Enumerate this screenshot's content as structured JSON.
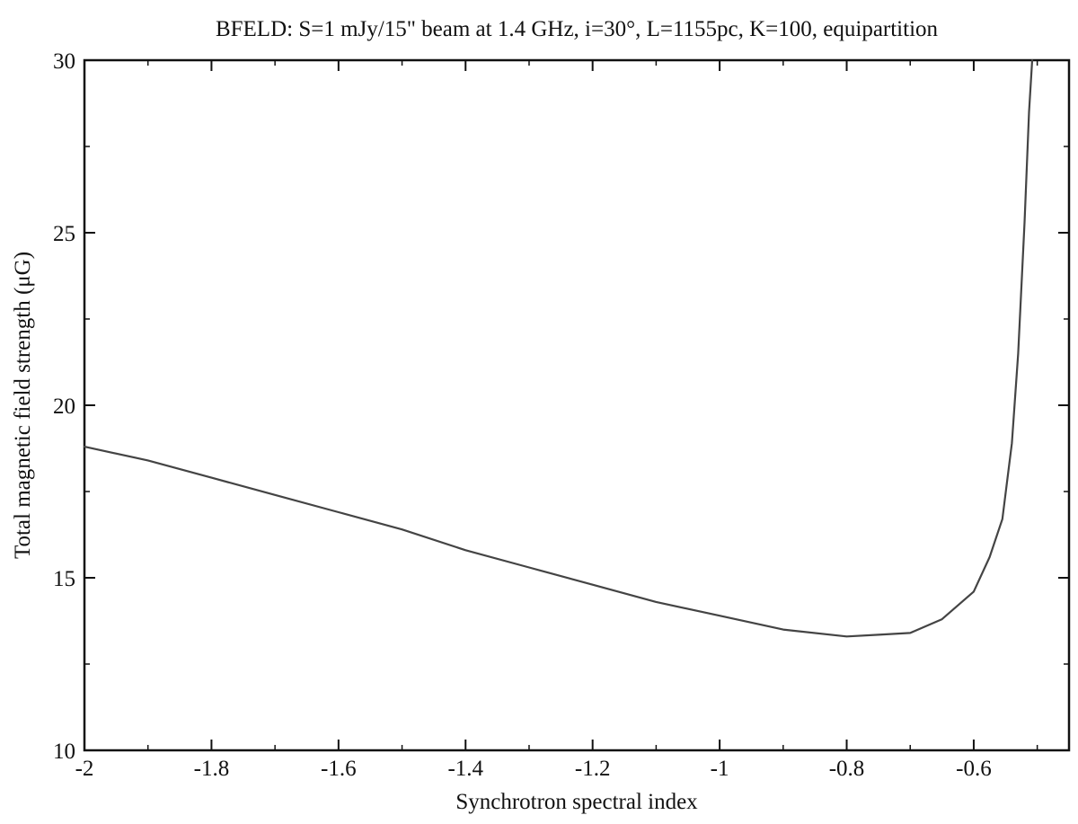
{
  "chart_data": {
    "type": "line",
    "title": "BFELD: S=1 mJy/15\" beam at 1.4 GHz, i=30°, L=1155pc, K=100, equipartition",
    "xlabel": "Synchrotron spectral index",
    "ylabel": "Total magnetic field strength (μG)",
    "xlim": [
      -2,
      -0.45
    ],
    "ylim": [
      10,
      30
    ],
    "x_ticks": [
      -2,
      -1.8,
      -1.6,
      -1.4,
      -1.2,
      -1,
      -0.8,
      -0.6
    ],
    "x_tick_labels": [
      "-2",
      "-1.8",
      "-1.6",
      "-1.4",
      "-1.2",
      "-1",
      "-0.8",
      "-0.6"
    ],
    "y_ticks": [
      10,
      15,
      20,
      25,
      30
    ],
    "y_tick_labels": [
      "10",
      "15",
      "20",
      "25",
      "30"
    ],
    "grid": false,
    "series": [
      {
        "color": "#444444",
        "x": [
          -2.0,
          -1.9,
          -1.8,
          -1.7,
          -1.6,
          -1.5,
          -1.4,
          -1.3,
          -1.2,
          -1.1,
          -1.0,
          -0.9,
          -0.8,
          -0.75,
          -0.7,
          -0.65,
          -0.6,
          -0.575,
          -0.555,
          -0.54,
          -0.53,
          -0.52,
          -0.513,
          -0.508
        ],
        "y": [
          18.8,
          18.4,
          17.9,
          17.4,
          16.9,
          16.4,
          15.8,
          15.3,
          14.8,
          14.3,
          13.9,
          13.5,
          13.3,
          13.35,
          13.4,
          13.8,
          14.6,
          15.6,
          16.7,
          18.9,
          21.5,
          25.3,
          28.5,
          30.0
        ]
      }
    ]
  }
}
